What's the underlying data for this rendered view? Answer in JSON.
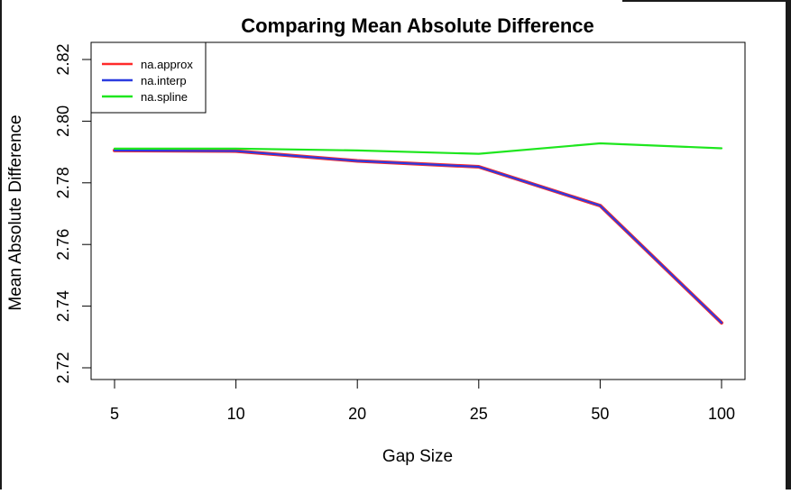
{
  "chart_data": {
    "type": "line",
    "title": "Comparing Mean Absolute Difference",
    "xlabel": "Gap Size",
    "ylabel": "Mean Absolute Difference",
    "categories": [
      "5",
      "10",
      "20",
      "25",
      "50",
      "100"
    ],
    "ylim": [
      2.72,
      2.82
    ],
    "yticks": [
      "2.72",
      "2.74",
      "2.76",
      "2.78",
      "2.80",
      "2.82"
    ],
    "grid": false,
    "legend_position": "top-left",
    "series": [
      {
        "name": "na.approx",
        "color": "#ff2a2a",
        "values": [
          2.7905,
          2.7903,
          2.7871,
          2.7852,
          2.7726,
          2.7346
        ]
      },
      {
        "name": "na.interp",
        "color": "#2b3be0",
        "values": [
          2.7905,
          2.7903,
          2.7871,
          2.7852,
          2.7726,
          2.7346
        ]
      },
      {
        "name": "na.spline",
        "color": "#1ee61e",
        "values": [
          2.7911,
          2.7911,
          2.7905,
          2.7894,
          2.7928,
          2.7912
        ]
      }
    ]
  }
}
